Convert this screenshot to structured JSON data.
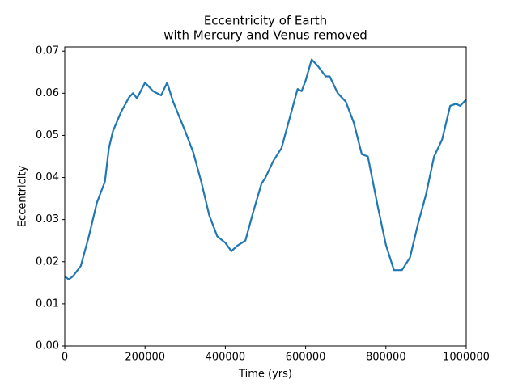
{
  "chart_data": {
    "type": "line",
    "title": [
      "Eccentricity of Earth",
      "with Mercury and Venus removed"
    ],
    "x_label": "Time (yrs)",
    "y_label": "Eccentricity",
    "color": "#1f77b4",
    "x": [
      0,
      10000,
      20000,
      40000,
      60000,
      80000,
      100000,
      110000,
      120000,
      140000,
      160000,
      170000,
      180000,
      200000,
      220000,
      240000,
      255000,
      270000,
      300000,
      320000,
      340000,
      360000,
      380000,
      400000,
      415000,
      430000,
      450000,
      470000,
      490000,
      500000,
      520000,
      540000,
      560000,
      580000,
      590000,
      600000,
      615000,
      630000,
      650000,
      660000,
      680000,
      700000,
      720000,
      740000,
      755000,
      780000,
      800000,
      820000,
      840000,
      860000,
      880000,
      900000,
      920000,
      940000,
      960000,
      975000,
      985000,
      1000000
    ],
    "values": [
      0.0165,
      0.0158,
      0.0165,
      0.019,
      0.026,
      0.034,
      0.039,
      0.047,
      0.051,
      0.0555,
      0.059,
      0.06,
      0.0588,
      0.0625,
      0.0605,
      0.0595,
      0.0625,
      0.058,
      0.051,
      0.046,
      0.039,
      0.031,
      0.026,
      0.0245,
      0.0225,
      0.0238,
      0.025,
      0.032,
      0.0385,
      0.04,
      0.044,
      0.047,
      0.054,
      0.061,
      0.0605,
      0.063,
      0.068,
      0.0665,
      0.064,
      0.064,
      0.06,
      0.058,
      0.053,
      0.0455,
      0.045,
      0.033,
      0.024,
      0.018,
      0.018,
      0.021,
      0.029,
      0.036,
      0.045,
      0.049,
      0.057,
      0.0575,
      0.057,
      0.0585
    ],
    "xlim": [
      0,
      1000000
    ],
    "ylim": [
      0,
      0.071
    ],
    "xticks": [
      0,
      200000,
      400000,
      600000,
      800000,
      1000000
    ],
    "yticks": [
      {
        "value": 0,
        "label": "0.00"
      },
      {
        "value": 0.01,
        "label": "0.01"
      },
      {
        "value": 0.02,
        "label": "0.02"
      },
      {
        "value": 0.03,
        "label": "0.03"
      },
      {
        "value": 0.04,
        "label": "0.04"
      },
      {
        "value": 0.05,
        "label": "0.05"
      },
      {
        "value": 0.06,
        "label": "0.06"
      },
      {
        "value": 0.07,
        "label": "0.07"
      }
    ],
    "grid": false
  }
}
